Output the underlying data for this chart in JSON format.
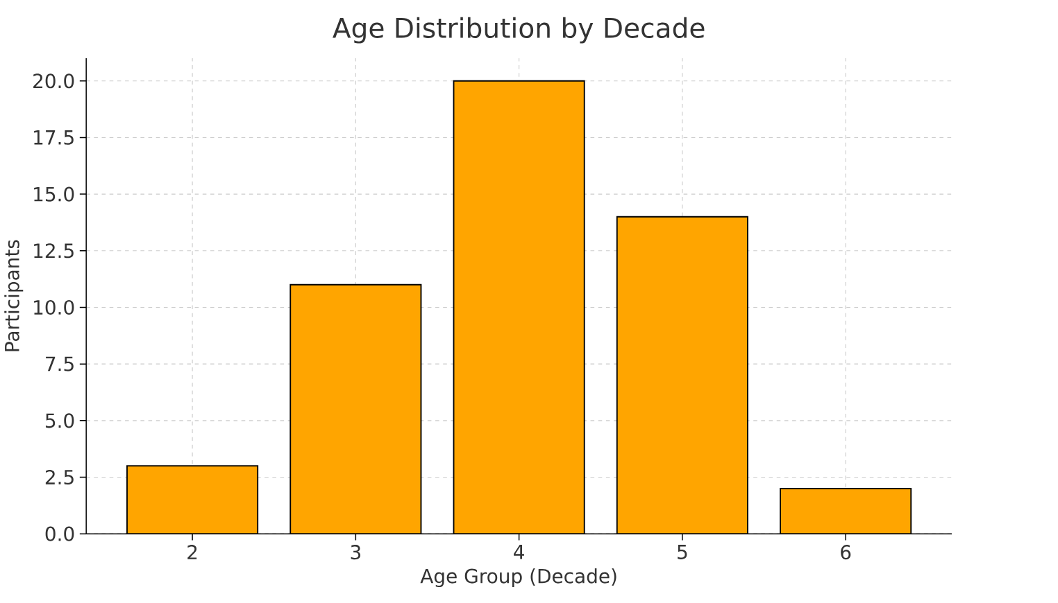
{
  "chart_data": {
    "type": "bar",
    "title": "Age Distribution by Decade",
    "xlabel": "Age Group (Decade)",
    "ylabel": "Participants",
    "categories": [
      "2",
      "3",
      "4",
      "5",
      "6"
    ],
    "values": [
      3,
      11,
      20,
      14,
      2
    ],
    "color": "#ffa500",
    "ylim": [
      0,
      21
    ],
    "yticks": [
      {
        "value": 0,
        "label": "0.0"
      },
      {
        "value": 2.5,
        "label": "2.5"
      },
      {
        "value": 5,
        "label": "5.0"
      },
      {
        "value": 7.5,
        "label": "7.5"
      },
      {
        "value": 10,
        "label": "10.0"
      },
      {
        "value": 12.5,
        "label": "12.5"
      },
      {
        "value": 15,
        "label": "15.0"
      },
      {
        "value": 17.5,
        "label": "17.5"
      },
      {
        "value": 20,
        "label": "20.0"
      }
    ],
    "grid": true
  }
}
